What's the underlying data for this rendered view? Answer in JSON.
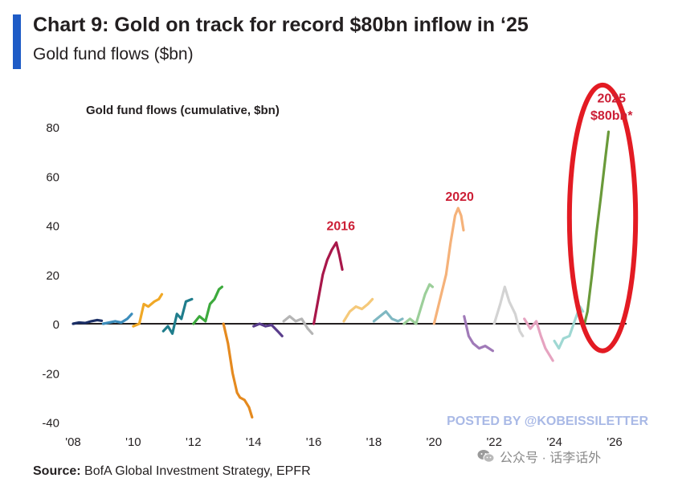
{
  "header": {
    "title": "Chart 9: Gold on track for record $80bn inflow in ‘25",
    "subtitle": "Gold fund flows ($bn)",
    "accent_color": "#1e5bc6"
  },
  "footer": {
    "source_label": "Source:",
    "source_text": " BofA Global Investment Strategy, EPFR",
    "watermark": "POSTED BY @KOBEISSILETTER",
    "wechat_label": "公众号 · 话李话外",
    "wechat_icon": "wechat-icon"
  },
  "chart_data": {
    "type": "line",
    "title": "Gold fund flows (cumulative, $bn)",
    "xlabel": "",
    "ylabel": "",
    "xlim": [
      2008,
      2026.6
    ],
    "ylim": [
      -40,
      85
    ],
    "x_ticks": [
      {
        "value": 2008,
        "label": "'08"
      },
      {
        "value": 2010,
        "label": "'10"
      },
      {
        "value": 2012,
        "label": "'12"
      },
      {
        "value": 2014,
        "label": "'14"
      },
      {
        "value": 2016,
        "label": "'16"
      },
      {
        "value": 2018,
        "label": "'18"
      },
      {
        "value": 2020,
        "label": "'20"
      },
      {
        "value": 2022,
        "label": "'22"
      },
      {
        "value": 2024,
        "label": "'24"
      },
      {
        "value": 2026,
        "label": "'26"
      }
    ],
    "y_ticks": [
      80,
      60,
      40,
      20,
      0,
      -20,
      -40
    ],
    "grid": false,
    "annotations": [
      {
        "text": "2016",
        "x": 2016.9,
        "y": 38,
        "color": "#cc1f36"
      },
      {
        "text": "2020",
        "x": 2020.85,
        "y": 50,
        "color": "#cc1f36"
      },
      {
        "text": "2025",
        "x": 2025.9,
        "y": 90,
        "color": "#cc1f36"
      },
      {
        "text": "$80bn*",
        "x": 2025.9,
        "y": 83,
        "color": "#cc1f36"
      }
    ],
    "highlight_ellipse": {
      "cx": 2025.6,
      "cy": 43,
      "rx": 1.1,
      "ry": 54,
      "color": "#e31b23"
    },
    "series": [
      {
        "year": 2008,
        "color": "#1b2f66",
        "x": [
          2008.0,
          2008.2,
          2008.4,
          2008.6,
          2008.8,
          2008.95
        ],
        "y": [
          0,
          0.5,
          0.3,
          1,
          1.5,
          1.2
        ]
      },
      {
        "year": 2009,
        "color": "#3c8dbc",
        "x": [
          2009.0,
          2009.2,
          2009.4,
          2009.6,
          2009.8,
          2009.95
        ],
        "y": [
          0,
          0.5,
          1,
          0.5,
          2,
          4
        ]
      },
      {
        "year": 2010,
        "color": "#f0a826",
        "x": [
          2010.0,
          2010.2,
          2010.35,
          2010.5,
          2010.7,
          2010.85,
          2010.95
        ],
        "y": [
          -1,
          0,
          8,
          7,
          9,
          10,
          12
        ]
      },
      {
        "year": 2011,
        "color": "#1f7d8c",
        "x": [
          2011.0,
          2011.15,
          2011.3,
          2011.45,
          2011.6,
          2011.75,
          2011.95
        ],
        "y": [
          -3,
          -1,
          -4,
          4,
          2,
          9,
          10
        ]
      },
      {
        "year": 2012,
        "color": "#3daa3d",
        "x": [
          2012.0,
          2012.2,
          2012.4,
          2012.55,
          2012.7,
          2012.85,
          2012.95
        ],
        "y": [
          0,
          3,
          1,
          8,
          10,
          14,
          15
        ]
      },
      {
        "year": 2013,
        "color": "#e58a1f",
        "x": [
          2013.0,
          2013.15,
          2013.3,
          2013.45,
          2013.55,
          2013.7,
          2013.85,
          2013.95
        ],
        "y": [
          0,
          -8,
          -20,
          -28,
          -30,
          -31,
          -34,
          -38
        ]
      },
      {
        "year": 2014,
        "color": "#5a3e8c",
        "x": [
          2014.0,
          2014.2,
          2014.4,
          2014.6,
          2014.8,
          2014.95
        ],
        "y": [
          -1,
          0,
          -1,
          -0.5,
          -3,
          -5
        ]
      },
      {
        "year": 2015,
        "color": "#b5b5b5",
        "x": [
          2015.0,
          2015.2,
          2015.4,
          2015.6,
          2015.8,
          2015.95
        ],
        "y": [
          1,
          3,
          1,
          2,
          -2,
          -4
        ]
      },
      {
        "year": 2016,
        "color": "#a8174a",
        "x": [
          2016.0,
          2016.15,
          2016.3,
          2016.45,
          2016.6,
          2016.75,
          2016.85,
          2016.95
        ],
        "y": [
          0,
          10,
          20,
          26,
          30,
          33,
          28,
          22
        ]
      },
      {
        "year": 2017,
        "color": "#f5c97a",
        "x": [
          2017.0,
          2017.2,
          2017.4,
          2017.6,
          2017.8,
          2017.95
        ],
        "y": [
          1,
          5,
          7,
          6,
          8,
          10
        ]
      },
      {
        "year": 2018,
        "color": "#7fb8c2",
        "x": [
          2018.0,
          2018.2,
          2018.4,
          2018.6,
          2018.8,
          2018.95
        ],
        "y": [
          1,
          3,
          5,
          2,
          1,
          2
        ]
      },
      {
        "year": 2019,
        "color": "#9ccf9a",
        "x": [
          2019.0,
          2019.2,
          2019.4,
          2019.55,
          2019.7,
          2019.85,
          2019.95
        ],
        "y": [
          0,
          2,
          0,
          6,
          12,
          16,
          15
        ]
      },
      {
        "year": 2020,
        "color": "#f5b27a",
        "x": [
          2020.0,
          2020.2,
          2020.4,
          2020.55,
          2020.7,
          2020.8,
          2020.9,
          2020.98
        ],
        "y": [
          0,
          10,
          20,
          33,
          44,
          47,
          44,
          38
        ]
      },
      {
        "year": 2021,
        "color": "#a07ab8",
        "x": [
          2021.0,
          2021.15,
          2021.3,
          2021.5,
          2021.7,
          2021.95
        ],
        "y": [
          3,
          -5,
          -8,
          -10,
          -9,
          -11
        ]
      },
      {
        "year": 2022,
        "color": "#d3d3d3",
        "x": [
          2022.0,
          2022.2,
          2022.35,
          2022.5,
          2022.7,
          2022.85,
          2022.95
        ],
        "y": [
          0,
          8,
          15,
          9,
          4,
          -3,
          -5
        ]
      },
      {
        "year": 2023,
        "color": "#e6a3c0",
        "x": [
          2023.0,
          2023.2,
          2023.4,
          2023.55,
          2023.7,
          2023.85,
          2023.95
        ],
        "y": [
          2,
          -2,
          1,
          -5,
          -10,
          -13,
          -15
        ]
      },
      {
        "year": 2024,
        "color": "#9fd8d3",
        "x": [
          2024.0,
          2024.15,
          2024.3,
          2024.5,
          2024.7,
          2024.85,
          2024.95
        ],
        "y": [
          -7,
          -10,
          -6,
          -5,
          2,
          7,
          5
        ]
      },
      {
        "year": 2025,
        "color": "#6a9a3a",
        "x": [
          2025.0,
          2025.1,
          2025.25,
          2025.4,
          2025.55,
          2025.7,
          2025.8
        ],
        "y": [
          0,
          5,
          20,
          37,
          52,
          68,
          78
        ]
      }
    ]
  }
}
